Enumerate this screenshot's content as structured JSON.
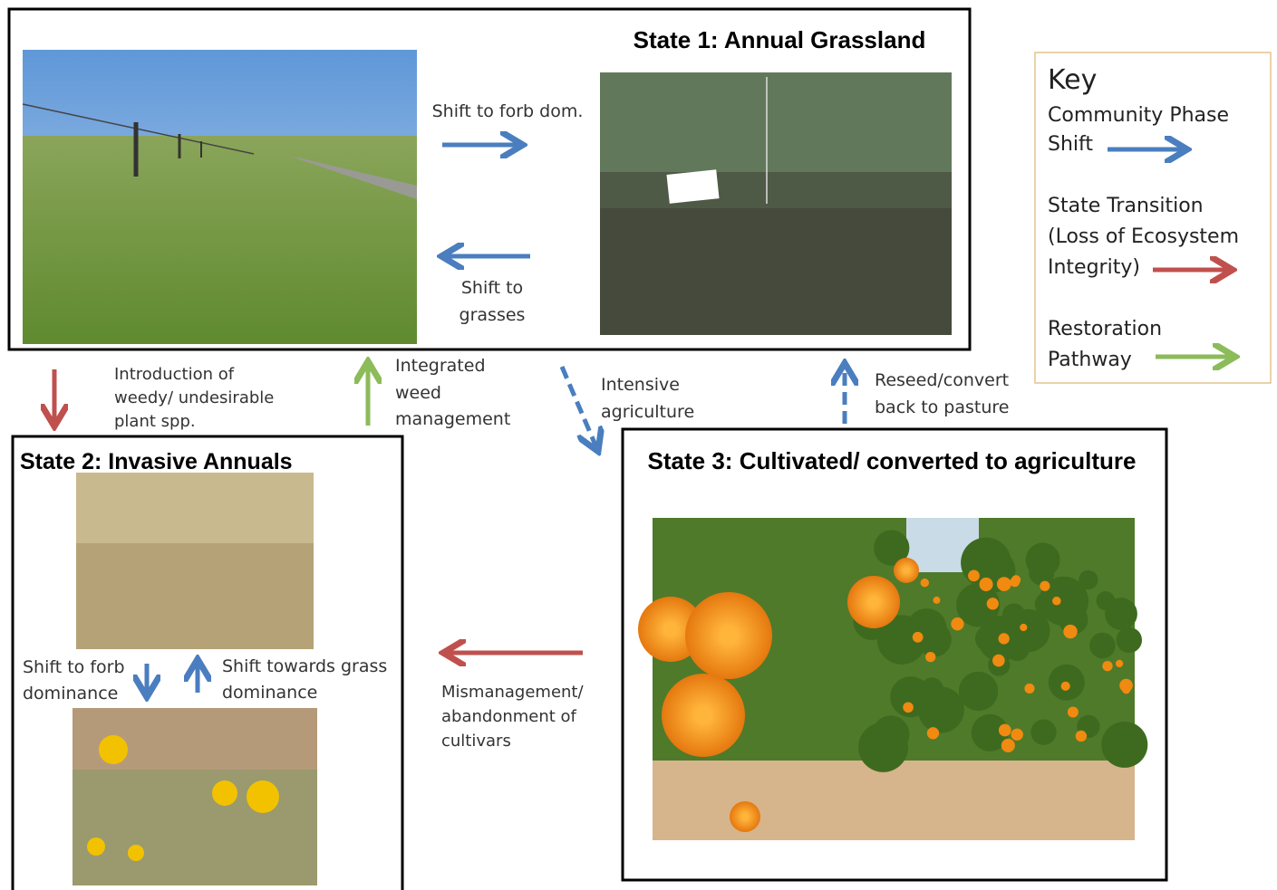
{
  "states": [
    {
      "title": "State 1: Annual Grassland"
    },
    {
      "title": "State 2: Invasive Annuals"
    },
    {
      "title": "State 3: Cultivated/ converted to agriculture"
    }
  ],
  "transitions": [
    {
      "lines": [
        "Shift to forb dom."
      ]
    },
    {
      "lines": [
        "Shift to",
        "grasses"
      ]
    },
    {
      "lines": [
        "Introduction of",
        "weedy/ undesirable",
        "plant spp."
      ]
    },
    {
      "lines": [
        "Integrated",
        "weed",
        "management"
      ]
    },
    {
      "lines": [
        "Intensive",
        "agriculture"
      ]
    },
    {
      "lines": [
        "Reseed/convert",
        "back to pasture"
      ]
    },
    {
      "lines": [
        "Shift to forb",
        "dominance"
      ]
    },
    {
      "lines": [
        "Shift towards grass",
        "dominance"
      ]
    },
    {
      "lines": [
        "Mismanagement/",
        "abandonment of",
        "cultivars"
      ]
    }
  ],
  "key": {
    "title": "Key",
    "items": [
      {
        "lines": [
          "Community Phase",
          "Shift"
        ]
      },
      {
        "lines": [
          "State Transition",
          "(Loss of Ecosystem",
          "Integrity)"
        ]
      },
      {
        "lines": [
          "Restoration",
          "Pathway"
        ]
      }
    ]
  }
}
